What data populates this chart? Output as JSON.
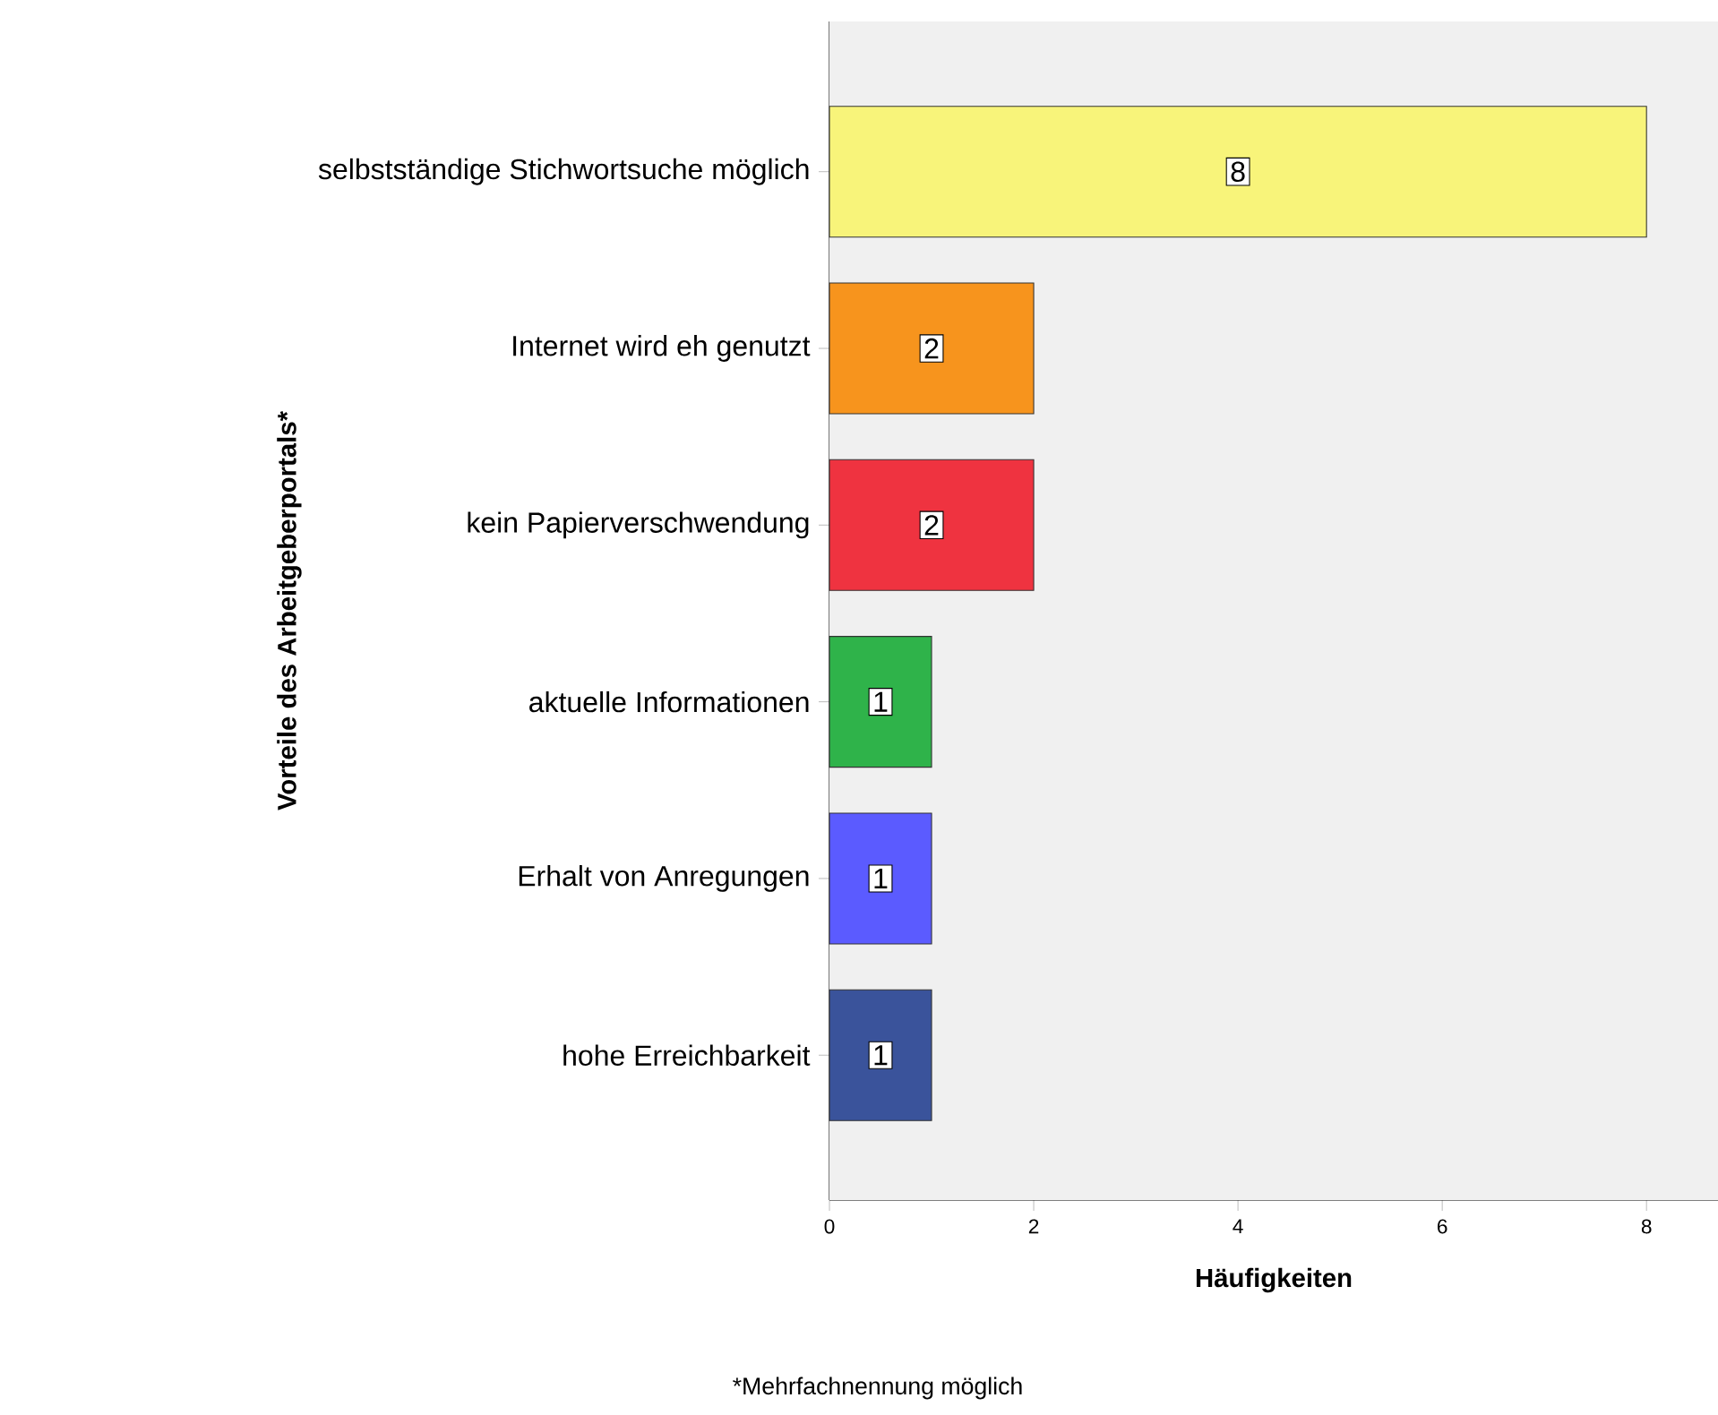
{
  "chart_data": {
    "type": "bar",
    "orientation": "horizontal",
    "categories": [
      "selbstständige Stichwortsuche möglich",
      "Internet wird eh genutzt",
      "kein Papierverschwendung",
      "aktuelle Informationen",
      "Erhalt von Anregungen",
      "hohe Erreichbarkeit"
    ],
    "values": [
      8,
      2,
      2,
      1,
      1,
      1
    ],
    "colors": [
      "#f8f47a",
      "#f7941d",
      "#ef3340",
      "#2fb34a",
      "#5b5bff",
      "#3a539b"
    ],
    "xlim": [
      0,
      8.7
    ],
    "xticks": [
      0,
      2,
      4,
      6,
      8
    ],
    "xlabel": "Häufigkeiten",
    "ylabel": "Vorteile des  Arbeitgeberportals*",
    "annotations": [
      "*Mehrfachnennung möglich"
    ],
    "data_labels": true
  }
}
